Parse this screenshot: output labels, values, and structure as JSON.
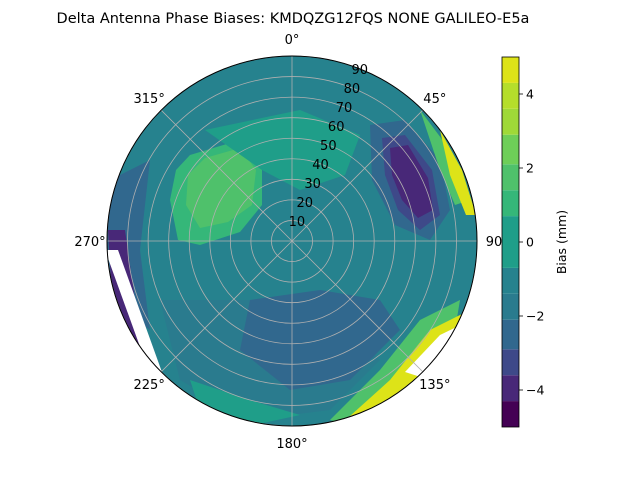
{
  "chart_data": {
    "type": "heatmap",
    "projection": "polar",
    "title": "Delta Antenna Phase Biases: KMDQZG12FQS     NONE GALILEO-E5a",
    "angular_tick_labels": [
      "0°",
      "45°",
      "90",
      "135°",
      "180°",
      "225°",
      "270°",
      "315°"
    ],
    "radial_tick_labels": [
      "10",
      "20",
      "30",
      "40",
      "50",
      "60",
      "70",
      "80",
      "90"
    ],
    "radial_range": [
      0,
      90
    ],
    "theta_direction": "clockwise",
    "theta_zero": "north",
    "colorbar": {
      "label": "Bias (mm)",
      "range": [
        -5,
        5
      ],
      "ticks": [
        -4,
        -2,
        0,
        2,
        4
      ],
      "tick_labels": [
        "−4",
        "−2",
        "0",
        "2",
        "4"
      ],
      "levels": [
        -5,
        -4.3,
        -3.6,
        -2.9,
        -2.1,
        -1.4,
        -0.7,
        0.7,
        1.4,
        2.1,
        2.9,
        3.6,
        4.3,
        5
      ],
      "colors": [
        "#440154",
        "#482878",
        "#3e4989",
        "#31688e",
        "#2a7b8e",
        "#26828e",
        "#1f9e89",
        "#35b779",
        "#4fc16b",
        "#6ece58",
        "#9fd938",
        "#b5de2b",
        "#dde318"
      ]
    },
    "grid": true
  }
}
